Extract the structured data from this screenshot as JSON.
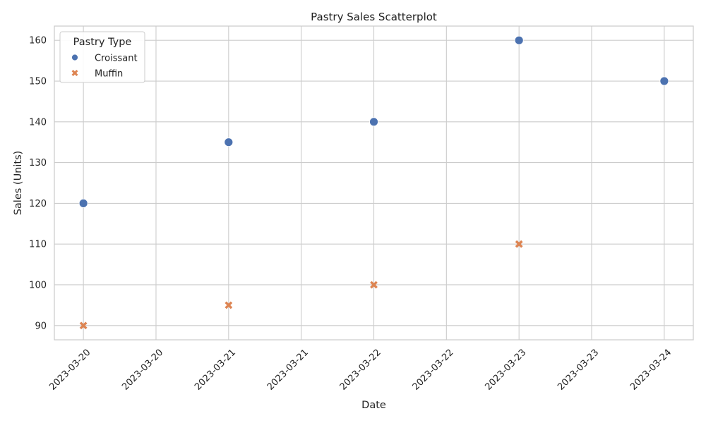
{
  "chart_data": {
    "type": "scatter",
    "title": "Pastry Sales Scatterplot",
    "xlabel": "Date",
    "ylabel": "Sales (Units)",
    "x_tick_labels": [
      "2023-03-20",
      "2023-03-20",
      "2023-03-21",
      "2023-03-21",
      "2023-03-22",
      "2023-03-22",
      "2023-03-23",
      "2023-03-23",
      "2023-03-24"
    ],
    "x_tick_dates": [
      "2023-03-20T00:00",
      "2023-03-20T12:00",
      "2023-03-21T00:00",
      "2023-03-21T12:00",
      "2023-03-22T00:00",
      "2023-03-22T12:00",
      "2023-03-23T00:00",
      "2023-03-23T12:00",
      "2023-03-24T00:00"
    ],
    "y_ticks": [
      90,
      100,
      110,
      120,
      130,
      140,
      150,
      160
    ],
    "xlim": [
      "2023-03-19T19:12",
      "2023-03-24T04:48"
    ],
    "ylim": [
      86.5,
      163.5
    ],
    "grid": true,
    "legend": {
      "title": "Pastry Type",
      "placement": "top-left"
    },
    "series": [
      {
        "name": "Croissant",
        "marker": "circle",
        "color": "#4c72b0",
        "x": [
          "2023-03-20",
          "2023-03-21",
          "2023-03-22",
          "2023-03-23",
          "2023-03-24"
        ],
        "y": [
          120,
          135,
          140,
          160,
          150
        ]
      },
      {
        "name": "Muffin",
        "marker": "x",
        "color": "#dd8452",
        "x": [
          "2023-03-20",
          "2023-03-21",
          "2023-03-22",
          "2023-03-23"
        ],
        "y": [
          90,
          95,
          100,
          110
        ]
      }
    ]
  }
}
